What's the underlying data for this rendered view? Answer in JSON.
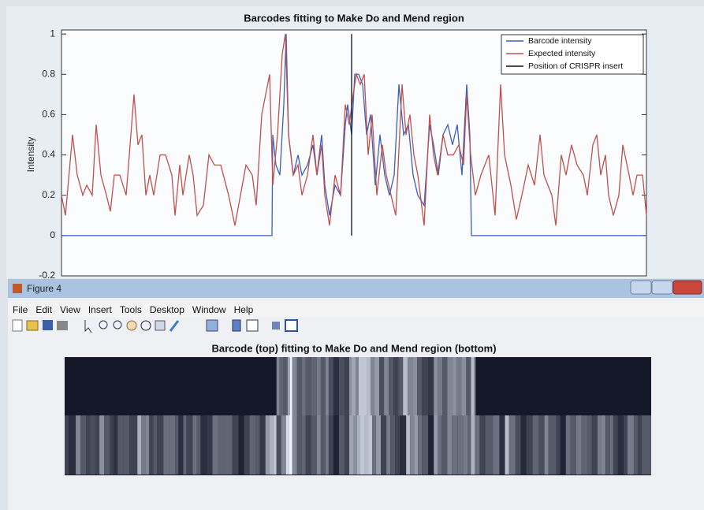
{
  "chart_data": {
    "type": "line",
    "title": "Barcodes fitting to Make Do and Mend region",
    "ylabel": "Intensity",
    "xlim": [
      0,
      742
    ],
    "ylim": [
      -0.2,
      1.02
    ],
    "yticks": [
      -0.2,
      0,
      0.2,
      0.4,
      0.6,
      0.8,
      1
    ],
    "legend": "upper right",
    "series": [
      {
        "name": "Barcode intensity",
        "color": "#3a5fc0",
        "x": [
          0,
          267,
          268,
          272,
          277,
          282,
          285,
          288,
          294,
          300,
          305,
          312,
          319,
          324,
          330,
          334,
          340,
          347,
          354,
          360,
          363,
          368,
          372,
          377,
          382,
          387,
          392,
          398,
          404,
          410,
          416,
          422,
          428,
          434,
          440,
          446,
          452,
          460,
          467,
          472,
          478,
          484,
          490,
          496,
          502,
          508,
          514,
          518,
          520,
          742
        ],
        "values": [
          0,
          0,
          0.5,
          0.35,
          0.3,
          0.65,
          1.0,
          0.5,
          0.3,
          0.4,
          0.3,
          0.35,
          0.45,
          0.3,
          0.5,
          0.25,
          0.1,
          0.25,
          0.2,
          0.55,
          0.65,
          0.5,
          0.8,
          0.8,
          0.75,
          0.5,
          0.6,
          0.25,
          0.5,
          0.3,
          0.2,
          0.3,
          0.75,
          0.5,
          0.55,
          0.3,
          0.2,
          0.15,
          0.55,
          0.45,
          0.3,
          0.5,
          0.55,
          0.45,
          0.55,
          0.3,
          0.75,
          0.5,
          0,
          0
        ]
      },
      {
        "name": "Expected intensity",
        "color": "#c0504d",
        "x": [
          0,
          5,
          14,
          20,
          27,
          32,
          39,
          44,
          50,
          57,
          62,
          67,
          74,
          82,
          92,
          97,
          102,
          107,
          112,
          117,
          125,
          132,
          140,
          144,
          150,
          154,
          162,
          167,
          172,
          180,
          187,
          194,
          202,
          212,
          220,
          227,
          234,
          242,
          247,
          254,
          259,
          264,
          268,
          274,
          280,
          284,
          288,
          294,
          300,
          305,
          312,
          319,
          324,
          330,
          334,
          340,
          347,
          354,
          360,
          365,
          370,
          374,
          379,
          384,
          389,
          394,
          400,
          407,
          412,
          418,
          424,
          432,
          437,
          442,
          447,
          452,
          460,
          467,
          472,
          477,
          484,
          490,
          497,
          504,
          510,
          514,
          519,
          525,
          532,
          542,
          550,
          557,
          562,
          570,
          577,
          584,
          592,
          600,
          607,
          612,
          622,
          627,
          634,
          640,
          647,
          654,
          662,
          667,
          674,
          679,
          684,
          690,
          694,
          700,
          707,
          712,
          720,
          725,
          730,
          737,
          742
        ],
        "values": [
          0.2,
          0.1,
          0.5,
          0.3,
          0.2,
          0.25,
          0.2,
          0.55,
          0.3,
          0.2,
          0.12,
          0.3,
          0.3,
          0.2,
          0.7,
          0.45,
          0.5,
          0.2,
          0.3,
          0.2,
          0.4,
          0.4,
          0.3,
          0.1,
          0.35,
          0.2,
          0.4,
          0.3,
          0.1,
          0.15,
          0.4,
          0.35,
          0.35,
          0.2,
          0.05,
          0.2,
          0.35,
          0.3,
          0.15,
          0.6,
          0.7,
          0.8,
          0.25,
          0.5,
          0.9,
          1.0,
          0.5,
          0.3,
          0.35,
          0.2,
          0.3,
          0.5,
          0.3,
          0.45,
          0.2,
          0.05,
          0.3,
          0.2,
          0.65,
          0.55,
          0.7,
          0.8,
          0.75,
          0.8,
          0.4,
          0.6,
          0.2,
          0.45,
          0.3,
          0.2,
          0.1,
          0.75,
          0.5,
          0.6,
          0.4,
          0.3,
          0.05,
          0.6,
          0.4,
          0.3,
          0.5,
          0.4,
          0.4,
          0.45,
          0.35,
          0.7,
          0.4,
          0.2,
          0.3,
          0.4,
          0.1,
          0.75,
          0.4,
          0.25,
          0.08,
          0.2,
          0.35,
          0.25,
          0.5,
          0.3,
          0.2,
          0.05,
          0.4,
          0.3,
          0.45,
          0.35,
          0.3,
          0.2,
          0.45,
          0.5,
          0.3,
          0.4,
          0.2,
          0.1,
          0.2,
          0.45,
          0.3,
          0.2,
          0.3,
          0.3,
          0.1
        ]
      },
      {
        "name": "Position of CRISPR insert",
        "color": "#111111",
        "x": [
          368,
          368
        ],
        "values": [
          0,
          1.0
        ]
      }
    ]
  },
  "window": {
    "title": "Figure 4",
    "menu": [
      "File",
      "Edit",
      "View",
      "Insert",
      "Tools",
      "Desktop",
      "Window",
      "Help"
    ],
    "image_title": "Barcode (top) fitting to Make Do and Mend region (bottom)"
  }
}
